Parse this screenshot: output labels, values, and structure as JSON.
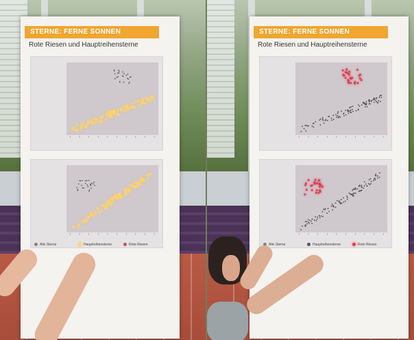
{
  "exhibit": {
    "title": "STERNE: FERNE SONNEN",
    "subtitle": "Rote Riesen und Hauptreihensterne",
    "legend": {
      "all_stars": "Alle Sterne",
      "main_sequence": "Hauptreihensterne",
      "red_giants": "Rote Riesen"
    }
  },
  "colors": {
    "title_bar": "#f0a630",
    "glow_yellow": "#ffd36b",
    "red_giant": "#e03a4f",
    "dark_dot": "#4a4a4a"
  },
  "scenes": {
    "left": {
      "highlighted": "main_sequence"
    },
    "right": {
      "highlighted": "red_giants"
    }
  }
}
